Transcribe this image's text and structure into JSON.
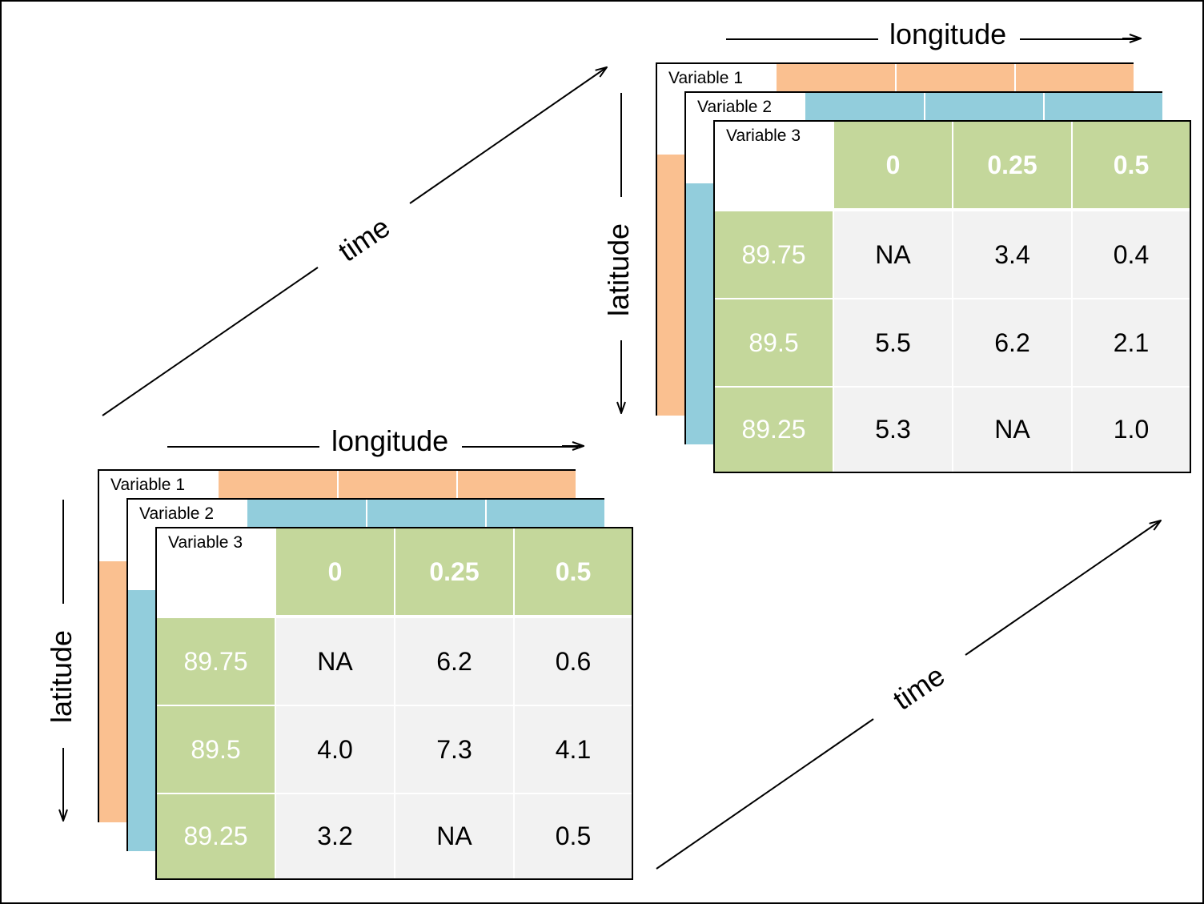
{
  "axes": {
    "longitude": "longitude",
    "latitude": "latitude",
    "time": "time"
  },
  "colors": {
    "variable1": "#fac090",
    "variable2": "#92cddc",
    "variable3_header": "#c4d79b",
    "cell_background": "#f2f2f2"
  },
  "variables": [
    "Variable 1",
    "Variable 2",
    "Variable 3"
  ],
  "column_headers": [
    "0",
    "0.25",
    "0.5"
  ],
  "row_headers": [
    "89.75",
    "89.5",
    "89.25"
  ],
  "stacks": [
    {
      "rows": [
        [
          "NA",
          "6.2",
          "0.6"
        ],
        [
          "4.0",
          "7.3",
          "4.1"
        ],
        [
          "3.2",
          "NA",
          "0.5"
        ]
      ]
    },
    {
      "rows": [
        [
          "NA",
          "3.4",
          "0.4"
        ],
        [
          "5.5",
          "6.2",
          "2.1"
        ],
        [
          "5.3",
          "NA",
          "1.0"
        ]
      ]
    }
  ]
}
